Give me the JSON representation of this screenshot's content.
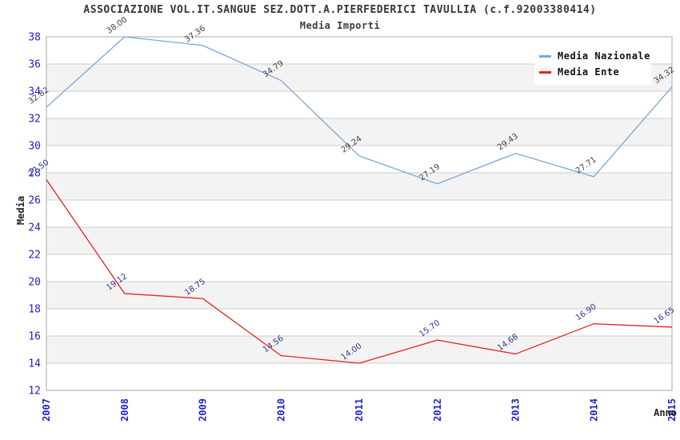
{
  "header": {
    "title": "ASSOCIAZIONE VOL.IT.SANGUE SEZ.DOTT.A.PIERFEDERICI TAVULLIA (c.f.92003380414)",
    "subtitle": "Media Importi"
  },
  "chart_data": {
    "type": "line",
    "x": [
      "2007",
      "2008",
      "2009",
      "2010",
      "2011",
      "2012",
      "2013",
      "2014",
      "2015"
    ],
    "series": [
      {
        "name": "Media Nazionale",
        "color": "#7AA7DD",
        "label_color": "#404040",
        "values": [
          32.82,
          38.0,
          37.36,
          34.79,
          29.24,
          27.19,
          29.43,
          27.71,
          34.32
        ]
      },
      {
        "name": "Media Ente",
        "color": "#E42222",
        "label_color": "#333399",
        "values": [
          27.5,
          19.12,
          18.75,
          14.56,
          14.0,
          15.7,
          14.68,
          16.9,
          16.65
        ]
      }
    ],
    "xlabel": "Anno",
    "ylabel": "Media",
    "ylim": [
      12,
      38
    ],
    "ytick_step": 2,
    "grid": true,
    "legend_position": "top-right",
    "band_colors": [
      "#FFFFFF",
      "#F3F3F3"
    ],
    "tick_color": "#2222CC",
    "grid_color": "#CCCCCC",
    "border_color": "#AAAAAA"
  }
}
